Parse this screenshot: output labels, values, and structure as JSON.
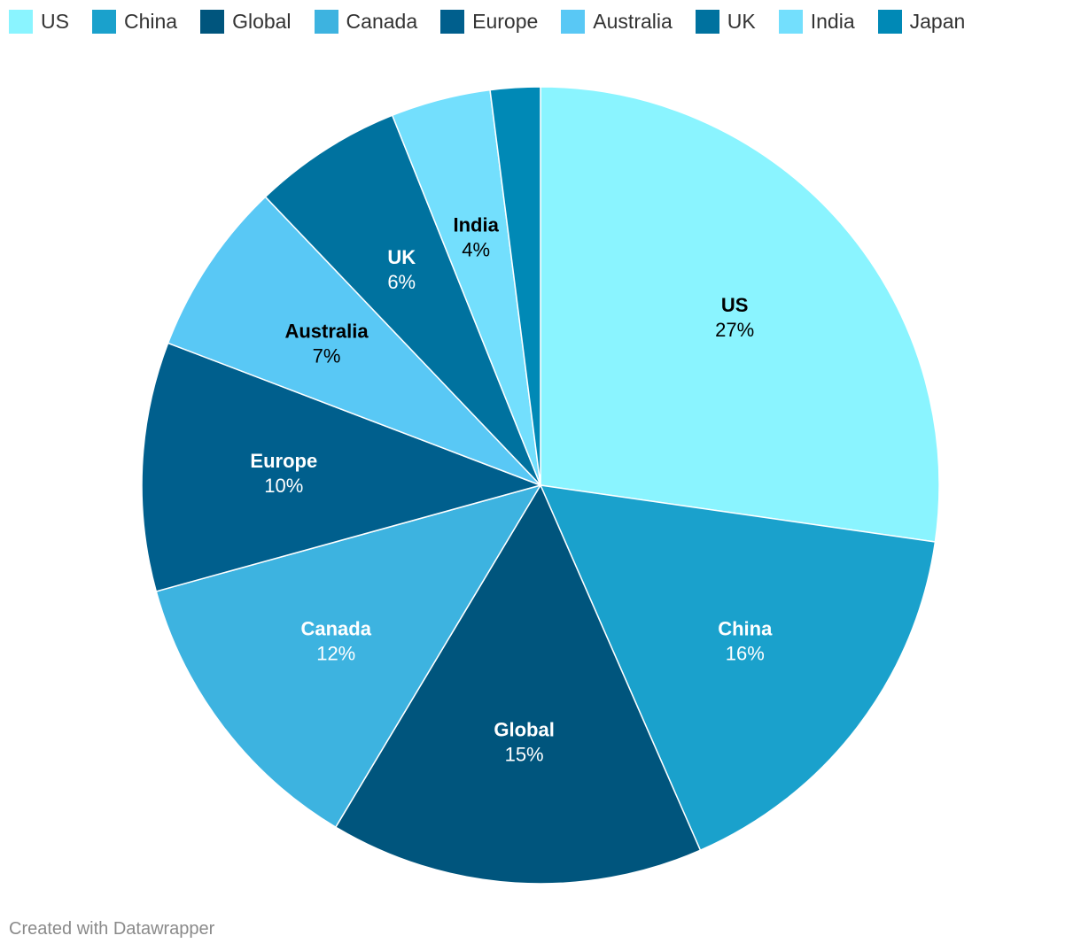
{
  "chart_data": {
    "type": "pie",
    "categories": [
      "US",
      "China",
      "Global",
      "Canada",
      "Europe",
      "Australia",
      "UK",
      "India",
      "Japan"
    ],
    "values": [
      27,
      16,
      15,
      12,
      10,
      7,
      6,
      4,
      2
    ],
    "value_labels": [
      "27%",
      "16%",
      "15%",
      "12%",
      "10%",
      "7%",
      "6%",
      "4%",
      ""
    ],
    "colors": [
      "#8af4ff",
      "#1aa1cc",
      "#00557d",
      "#3db3e0",
      "#005f8d",
      "#59c8f5",
      "#00729f",
      "#73dffd",
      "#0089b6"
    ],
    "label_colors": [
      "#000000",
      "#ffffff",
      "#ffffff",
      "#ffffff",
      "#ffffff",
      "#000000",
      "#ffffff",
      "#000000",
      "#ffffff"
    ],
    "legend_placement": "top-left",
    "title": ""
  },
  "footer": {
    "credit": "Created with Datawrapper"
  }
}
